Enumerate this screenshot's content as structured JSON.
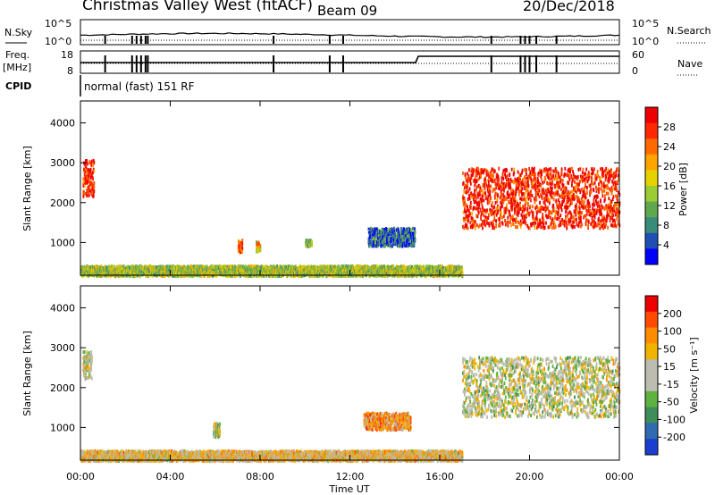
{
  "header": {
    "title": "Christmas Valley West (fitACF)",
    "beam": "Beam 09",
    "date": "20/Dec/2018",
    "cpid_mode": "normal (fast) 151 RF"
  },
  "status_labels": {
    "nsky": "N.Sky",
    "nsearch": "N.Search",
    "freq_line1": "Freq.",
    "freq_line2": "[MHz]",
    "nave": "Nave",
    "cpid": "CPID",
    "noise_left_top": "10^5",
    "noise_left_bottom": "10^0",
    "noise_right_top": "10^5",
    "noise_right_bottom": "10^0",
    "freq_top": "18",
    "freq_bottom": "8",
    "nave_top": "60",
    "nave_bottom": "0"
  },
  "colors": {
    "power_scale": [
      "#0000ff",
      "#1f4fb4",
      "#3a8c7a",
      "#5fa84e",
      "#9ccc34",
      "#e6d200",
      "#ffa500",
      "#ff6a00",
      "#ff2800",
      "#ee0000"
    ],
    "velocity_scale": [
      "#1a3fd0",
      "#2e6bb0",
      "#3f8d5a",
      "#5eb23e",
      "#bcbcb0",
      "#bcbcb0",
      "#f0b400",
      "#ff8c00",
      "#ff4a00",
      "#ee0000"
    ]
  },
  "chart_data": [
    {
      "type": "heatmap",
      "name": "power",
      "ylabel": "Slant Range [km]",
      "xlabel": "",
      "ylim": [
        180,
        4550
      ],
      "yticks": [
        1000,
        2000,
        3000,
        4000
      ],
      "colorbar_label": "Power [dB]",
      "colorbar_ticks": [
        "28",
        "24",
        "20",
        "16",
        "12",
        "8",
        "4"
      ],
      "regions": [
        {
          "t0": 0.1,
          "t1": 0.6,
          "r0": 2200,
          "r1": 3100,
          "level": 0.9
        },
        {
          "t0": 7.0,
          "t1": 7.2,
          "r0": 780,
          "r1": 1100,
          "level": 0.85
        },
        {
          "t0": 7.8,
          "t1": 8.0,
          "r0": 820,
          "r1": 1050,
          "level": 0.6
        },
        {
          "t0": 10.0,
          "t1": 10.3,
          "r0": 950,
          "r1": 1100,
          "level": 0.4
        },
        {
          "t0": 12.8,
          "t1": 14.9,
          "r0": 950,
          "r1": 1400,
          "level": 0.2
        },
        {
          "t0": 17.0,
          "t1": 24.0,
          "r0": 1400,
          "r1": 2900,
          "level": 0.9
        },
        {
          "t0": 0.0,
          "t1": 17.0,
          "r0": 200,
          "r1": 450,
          "level": 0.45
        }
      ]
    },
    {
      "type": "heatmap",
      "name": "velocity",
      "ylabel": "Slant Range [km]",
      "xlabel": "Time UT",
      "ylim": [
        180,
        4550
      ],
      "yticks": [
        1000,
        2000,
        3000,
        4000
      ],
      "xticks": [
        "00:00",
        "04:00",
        "08:00",
        "12:00",
        "16:00",
        "20:00",
        "00:00"
      ],
      "colorbar_label": "Velocity [m s⁻¹]",
      "colorbar_ticks": [
        "200",
        "100",
        "50",
        "15",
        "-15",
        "-50",
        "-100",
        "-200"
      ],
      "regions": [
        {
          "t0": 0.1,
          "t1": 0.5,
          "r0": 2250,
          "r1": 2950,
          "level": 0.5
        },
        {
          "t0": 5.9,
          "t1": 6.2,
          "r0": 800,
          "r1": 1150,
          "level": 0.5
        },
        {
          "t0": 12.6,
          "t1": 14.7,
          "r0": 980,
          "r1": 1400,
          "level": 0.7
        },
        {
          "t0": 17.0,
          "t1": 24.0,
          "r0": 1300,
          "r1": 2800,
          "level": 0.5
        },
        {
          "t0": 0.0,
          "t1": 17.0,
          "r0": 200,
          "r1": 450,
          "level": 0.6
        }
      ]
    }
  ]
}
